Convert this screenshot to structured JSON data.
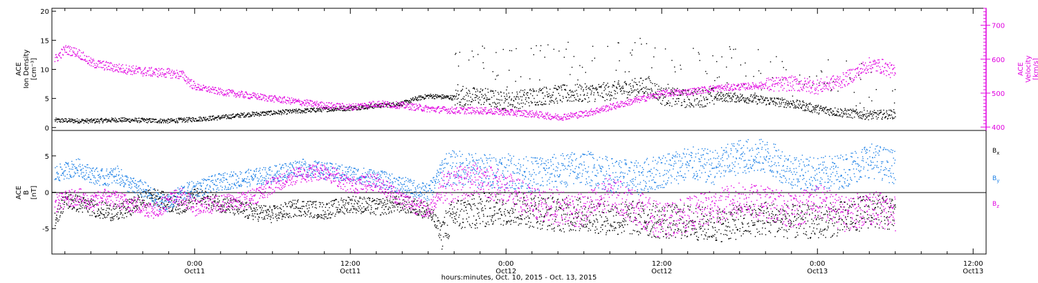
{
  "colors": {
    "black": "#000000",
    "magenta": "#e000e0",
    "blue": "#1a7fe6",
    "axis": "#000000"
  },
  "xaxis": {
    "title": "hours:minutes, Oct. 10, 2015 - Oct. 13, 2015",
    "ticks": [
      {
        "hour": 24,
        "time": "0:00",
        "date": "Oct11"
      },
      {
        "hour": 36,
        "time": "12:00",
        "date": "Oct11"
      },
      {
        "hour": 48,
        "time": "0:00",
        "date": "Oct12"
      },
      {
        "hour": 60,
        "time": "12:00",
        "date": "Oct12"
      },
      {
        "hour": 72,
        "time": "0:00",
        "date": "Oct13"
      },
      {
        "hour": 84,
        "time": "12:00",
        "date": "Oct13"
      }
    ],
    "range_hours": [
      13,
      85
    ]
  },
  "chart_data": [
    {
      "type": "scatter",
      "panel": "top",
      "ylabel_left": [
        "ACE",
        "Ion Density",
        "[cm⁻³]"
      ],
      "ylabel_right": [
        "ACE",
        "Velocity",
        "[km/s]"
      ],
      "ylim_left": [
        -0.5,
        20.5
      ],
      "ylim_right": [
        390,
        750
      ],
      "yticks_left": [
        0,
        5,
        10,
        15,
        20
      ],
      "yticks_right": [
        400,
        500,
        600,
        700
      ],
      "x_units": "hours since Oct 10 2015 00:00",
      "series": [
        {
          "color": "#000000",
          "axis": "left",
          "points": [
            [
              13.2,
              1.3
            ],
            [
              16,
              1.2
            ],
            [
              18,
              1.4
            ],
            [
              20,
              1.3
            ],
            [
              22,
              1.2
            ],
            [
              24,
              1.5
            ],
            [
              26,
              1.8
            ],
            [
              28,
              2.3
            ],
            [
              30,
              2.6
            ],
            [
              32,
              2.9
            ],
            [
              34,
              3.2
            ],
            [
              36,
              3.4
            ],
            [
              38,
              3.8
            ],
            [
              40,
              4.2
            ],
            [
              41,
              5
            ],
            [
              42,
              5.5
            ],
            [
              44,
              5.2
            ],
            [
              46,
              5.5
            ],
            [
              48,
              4.5
            ],
            [
              50,
              5.4
            ],
            [
              52,
              5.8
            ],
            [
              54,
              6
            ],
            [
              56,
              6.3
            ],
            [
              58,
              7
            ],
            [
              59,
              7.3
            ],
            [
              60,
              5.5
            ],
            [
              62,
              5
            ],
            [
              64,
              5.4
            ],
            [
              66,
              5.2
            ],
            [
              68,
              4.7
            ],
            [
              70,
              4.2
            ],
            [
              72,
              3.2
            ],
            [
              74,
              2.6
            ],
            [
              76,
              2.2
            ],
            [
              78,
              2.4
            ]
          ]
        },
        {
          "color": "#e000e0",
          "axis": "right",
          "points": [
            [
              13.2,
              600
            ],
            [
              14,
              630
            ],
            [
              15,
              620
            ],
            [
              16,
              590
            ],
            [
              18,
              575
            ],
            [
              20,
              565
            ],
            [
              22,
              560
            ],
            [
              23,
              555
            ],
            [
              24,
              520
            ],
            [
              26,
              505
            ],
            [
              28,
              495
            ],
            [
              30,
              485
            ],
            [
              32,
              475
            ],
            [
              34,
              465
            ],
            [
              36,
              460
            ],
            [
              38,
              470
            ],
            [
              40,
              465
            ],
            [
              42,
              455
            ],
            [
              44,
              450
            ],
            [
              46,
              450
            ],
            [
              48,
              445
            ],
            [
              50,
              440
            ],
            [
              52,
              430
            ],
            [
              54,
              440
            ],
            [
              56,
              460
            ],
            [
              58,
              480
            ],
            [
              60,
              500
            ],
            [
              62,
              505
            ],
            [
              64,
              515
            ],
            [
              66,
              520
            ],
            [
              68,
              525
            ],
            [
              70,
              530
            ],
            [
              72,
              520
            ],
            [
              74,
              540
            ],
            [
              76,
              585
            ],
            [
              77,
              580
            ],
            [
              78,
              560
            ]
          ]
        }
      ]
    },
    {
      "type": "scatter",
      "panel": "bottom",
      "ylabel_left": [
        "ACE",
        "B",
        "[nT]"
      ],
      "ylim": [
        -8.5,
        8.5
      ],
      "yticks": [
        -5,
        0,
        5
      ],
      "zero_line": true,
      "x_units": "hours since Oct 10 2015 00:00",
      "series": [
        {
          "name": "Bx",
          "color": "#000000",
          "points": [
            [
              13.2,
              -3.5
            ],
            [
              14,
              -1
            ],
            [
              15,
              -1.5
            ],
            [
              16,
              -2
            ],
            [
              17,
              -2.5
            ],
            [
              18,
              -2.8
            ],
            [
              19,
              -2
            ],
            [
              20,
              -1
            ],
            [
              21,
              -0.5
            ],
            [
              22,
              -1.5
            ],
            [
              23,
              -1.8
            ],
            [
              24,
              -0.5
            ],
            [
              26,
              -1.5
            ],
            [
              28,
              -2.5
            ],
            [
              30,
              -3
            ],
            [
              32,
              -2
            ],
            [
              34,
              -2.5
            ],
            [
              36,
              -1.5
            ],
            [
              38,
              -2
            ],
            [
              40,
              -1.5
            ],
            [
              42,
              -2.5
            ],
            [
              43,
              -5.5
            ],
            [
              44,
              -3
            ],
            [
              46,
              -2.5
            ],
            [
              48,
              -2
            ],
            [
              50,
              -2.5
            ],
            [
              52,
              -3
            ],
            [
              54,
              -3
            ],
            [
              56,
              -3.5
            ],
            [
              58,
              -3.5
            ],
            [
              60,
              -4
            ],
            [
              62,
              -4
            ],
            [
              64,
              -4.5
            ],
            [
              66,
              -4
            ],
            [
              68,
              -3.5
            ],
            [
              70,
              -4
            ],
            [
              72,
              -4
            ],
            [
              74,
              -3.5
            ],
            [
              76,
              -2.5
            ],
            [
              78,
              -3
            ]
          ]
        },
        {
          "name": "By",
          "color": "#1a7fe6",
          "points": [
            [
              13.2,
              2.5
            ],
            [
              14,
              3
            ],
            [
              15,
              3.5
            ],
            [
              16,
              2.5
            ],
            [
              17,
              2
            ],
            [
              18,
              2.5
            ],
            [
              19,
              1
            ],
            [
              20,
              0.5
            ],
            [
              21,
              -1
            ],
            [
              22,
              -1.5
            ],
            [
              23,
              0
            ],
            [
              24,
              0.5
            ],
            [
              26,
              1.5
            ],
            [
              28,
              2
            ],
            [
              30,
              2.5
            ],
            [
              32,
              3.5
            ],
            [
              34,
              3
            ],
            [
              36,
              2.5
            ],
            [
              38,
              2
            ],
            [
              40,
              1
            ],
            [
              42,
              0
            ],
            [
              43,
              3
            ],
            [
              44,
              3.5
            ],
            [
              46,
              3
            ],
            [
              48,
              3
            ],
            [
              50,
              2.5
            ],
            [
              52,
              3
            ],
            [
              54,
              3.5
            ],
            [
              56,
              2.5
            ],
            [
              58,
              2
            ],
            [
              60,
              3
            ],
            [
              62,
              4
            ],
            [
              64,
              3.5
            ],
            [
              66,
              5
            ],
            [
              68,
              5
            ],
            [
              70,
              3
            ],
            [
              72,
              2.5
            ],
            [
              74,
              3
            ],
            [
              76,
              4.5
            ],
            [
              78,
              3.5
            ]
          ]
        },
        {
          "name": "Bz",
          "color": "#e000e0",
          "points": [
            [
              13.2,
              -1.5
            ],
            [
              14,
              -1
            ],
            [
              15,
              -0.5
            ],
            [
              16,
              -1.5
            ],
            [
              17,
              -0.5
            ],
            [
              18,
              -1
            ],
            [
              19,
              -1.5
            ],
            [
              20,
              -2
            ],
            [
              21,
              -2.5
            ],
            [
              22,
              -1
            ],
            [
              23,
              -0.5
            ],
            [
              24,
              -2
            ],
            [
              26,
              -1.5
            ],
            [
              28,
              -1
            ],
            [
              30,
              1
            ],
            [
              32,
              2.5
            ],
            [
              34,
              3
            ],
            [
              36,
              1
            ],
            [
              38,
              1.5
            ],
            [
              40,
              -1
            ],
            [
              42,
              -2.5
            ],
            [
              43,
              0.5
            ],
            [
              44,
              1
            ],
            [
              46,
              2
            ],
            [
              48,
              0.5
            ],
            [
              50,
              -1.5
            ],
            [
              52,
              -2
            ],
            [
              54,
              -2.5
            ],
            [
              56,
              0
            ],
            [
              58,
              -2
            ],
            [
              60,
              -4
            ],
            [
              62,
              -3
            ],
            [
              64,
              -2
            ],
            [
              66,
              -1
            ],
            [
              68,
              -1.5
            ],
            [
              70,
              -2.5
            ],
            [
              72,
              -1
            ],
            [
              74,
              -3
            ],
            [
              76,
              -2
            ],
            [
              78,
              -3
            ]
          ]
        }
      ]
    }
  ],
  "legend": [
    {
      "base": "B",
      "sub": "x",
      "color": "#000000"
    },
    {
      "base": "B",
      "sub": "y",
      "color": "#1a7fe6"
    },
    {
      "base": "B",
      "sub": "z",
      "color": "#e000e0"
    }
  ]
}
